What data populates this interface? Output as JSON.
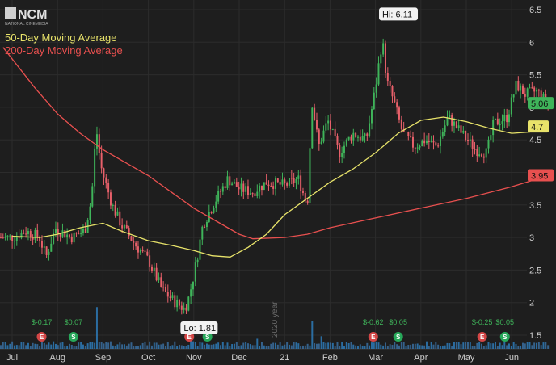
{
  "logo": {
    "text": "NCM",
    "subtext": "NATIONAL CINEMEDIA"
  },
  "legend": [
    {
      "label": "50-Day Moving Average",
      "color": "#e8e36a"
    },
    {
      "label": "200-Day Moving Average",
      "color": "#e8504f"
    }
  ],
  "watermark": "2020 year",
  "chart_data": {
    "type": "candlestick",
    "x_ticks": [
      "Jul",
      "Aug",
      "Sep",
      "Oct",
      "Nov",
      "Dec",
      "21",
      "Feb",
      "Mar",
      "Apr",
      "May",
      "Jun"
    ],
    "y_ticks": [
      "1.5",
      "2",
      "2.5",
      "3",
      "3.5",
      "4",
      "4.5",
      "5",
      "5.5",
      "6",
      "6.5"
    ],
    "ylim": [
      1.35,
      6.5
    ],
    "grid": true,
    "hi": {
      "label": "Hi: 6.11",
      "value": 6.11
    },
    "lo": {
      "label": "Lo: 1.81",
      "value": 1.81
    },
    "last_price": {
      "label": "5.06",
      "value": 5.06,
      "color": "#3fb45a"
    },
    "ma50_last": {
      "label": "4.7",
      "value": 4.7,
      "color": "#e8e36a"
    },
    "ma200_last": {
      "label": "3.95",
      "value": 3.95,
      "color": "#e8504f"
    },
    "ma50": [
      [
        0,
        3.02
      ],
      [
        0.6,
        3.0
      ],
      [
        1,
        3.05
      ],
      [
        1.5,
        3.15
      ],
      [
        2,
        3.22
      ],
      [
        2.4,
        3.1
      ],
      [
        3,
        2.95
      ],
      [
        3.5,
        2.88
      ],
      [
        4,
        2.8
      ],
      [
        4.4,
        2.72
      ],
      [
        4.8,
        2.7
      ],
      [
        5.2,
        2.85
      ],
      [
        5.6,
        3.05
      ],
      [
        6,
        3.35
      ],
      [
        6.5,
        3.6
      ],
      [
        7,
        3.85
      ],
      [
        7.5,
        4.05
      ],
      [
        8,
        4.3
      ],
      [
        8.5,
        4.6
      ],
      [
        9,
        4.8
      ],
      [
        9.5,
        4.85
      ],
      [
        10,
        4.78
      ],
      [
        10.5,
        4.68
      ],
      [
        11,
        4.6
      ],
      [
        11.4,
        4.62
      ],
      [
        11.8,
        4.7
      ]
    ],
    "ma200": [
      [
        -0.2,
        5.92
      ],
      [
        0.5,
        5.3
      ],
      [
        1,
        4.9
      ],
      [
        1.5,
        4.6
      ],
      [
        2,
        4.35
      ],
      [
        2.5,
        4.15
      ],
      [
        3,
        3.95
      ],
      [
        3.5,
        3.7
      ],
      [
        4,
        3.45
      ],
      [
        4.5,
        3.25
      ],
      [
        5,
        3.05
      ],
      [
        5.3,
        2.98
      ],
      [
        6,
        3.0
      ],
      [
        6.5,
        3.05
      ],
      [
        7,
        3.15
      ],
      [
        8,
        3.3
      ],
      [
        9,
        3.45
      ],
      [
        10,
        3.6
      ],
      [
        11,
        3.78
      ],
      [
        11.8,
        3.95
      ]
    ],
    "anchors": [
      [
        0,
        3.0
      ],
      [
        0.3,
        3.1
      ],
      [
        0.6,
        3.0
      ],
      [
        0.75,
        2.7
      ],
      [
        0.95,
        3.15
      ],
      [
        1.3,
        3.0
      ],
      [
        1.6,
        3.1
      ],
      [
        1.75,
        3.6
      ],
      [
        1.85,
        4.7
      ],
      [
        1.95,
        4.1
      ],
      [
        2.2,
        3.5
      ],
      [
        2.4,
        3.2
      ],
      [
        2.7,
        2.9
      ],
      [
        3.0,
        2.65
      ],
      [
        3.3,
        2.2
      ],
      [
        3.6,
        2.0
      ],
      [
        3.8,
        1.9
      ],
      [
        3.9,
        2.1
      ],
      [
        4.05,
        2.6
      ],
      [
        4.2,
        3.2
      ],
      [
        4.5,
        3.6
      ],
      [
        4.75,
        3.9
      ],
      [
        5.0,
        3.75
      ],
      [
        5.3,
        3.7
      ],
      [
        5.6,
        3.85
      ],
      [
        6.0,
        3.8
      ],
      [
        6.3,
        3.9
      ],
      [
        6.5,
        3.5
      ],
      [
        6.6,
        5.1
      ],
      [
        6.75,
        4.4
      ],
      [
        6.95,
        4.8
      ],
      [
        7.2,
        4.3
      ],
      [
        7.5,
        4.6
      ],
      [
        7.8,
        4.5
      ],
      [
        8.0,
        5.3
      ],
      [
        8.15,
        6.05
      ],
      [
        8.25,
        5.4
      ],
      [
        8.4,
        5.1
      ],
      [
        8.6,
        4.6
      ],
      [
        8.85,
        4.4
      ],
      [
        9.1,
        4.5
      ],
      [
        9.35,
        4.4
      ],
      [
        9.6,
        4.85
      ],
      [
        9.9,
        4.6
      ],
      [
        10.2,
        4.35
      ],
      [
        10.45,
        4.3
      ],
      [
        10.6,
        4.75
      ],
      [
        10.9,
        4.85
      ],
      [
        11.1,
        5.35
      ],
      [
        11.3,
        5.2
      ],
      [
        11.55,
        5.25
      ],
      [
        11.8,
        5.06
      ]
    ],
    "volume_spikes": [
      [
        1.85,
        0.33
      ],
      [
        3.95,
        0.2
      ],
      [
        6.6,
        0.22
      ],
      [
        6.8,
        0.1
      ],
      [
        5.4,
        0.08
      ]
    ],
    "events": [
      {
        "x": 0.65,
        "label": "$-0.17",
        "badge": "E",
        "badge_color": "#d44646"
      },
      {
        "x": 1.35,
        "label": "$0.07",
        "badge": "S",
        "badge_color": "#27a85a"
      },
      {
        "x": 3.9,
        "label": "",
        "badge": "E",
        "badge_color": "#d44646"
      },
      {
        "x": 4.3,
        "label": "",
        "badge": "S",
        "badge_color": "#27a85a"
      },
      {
        "x": 7.95,
        "label": "$-0.62",
        "badge": "E",
        "badge_color": "#d44646"
      },
      {
        "x": 8.5,
        "label": "$0.05",
        "badge": "S",
        "badge_color": "#27a85a"
      },
      {
        "x": 10.35,
        "label": "$-0.25",
        "badge": "E",
        "badge_color": "#d44646"
      },
      {
        "x": 10.85,
        "label": "$0.05",
        "badge": "S",
        "badge_color": "#27a85a"
      }
    ]
  }
}
